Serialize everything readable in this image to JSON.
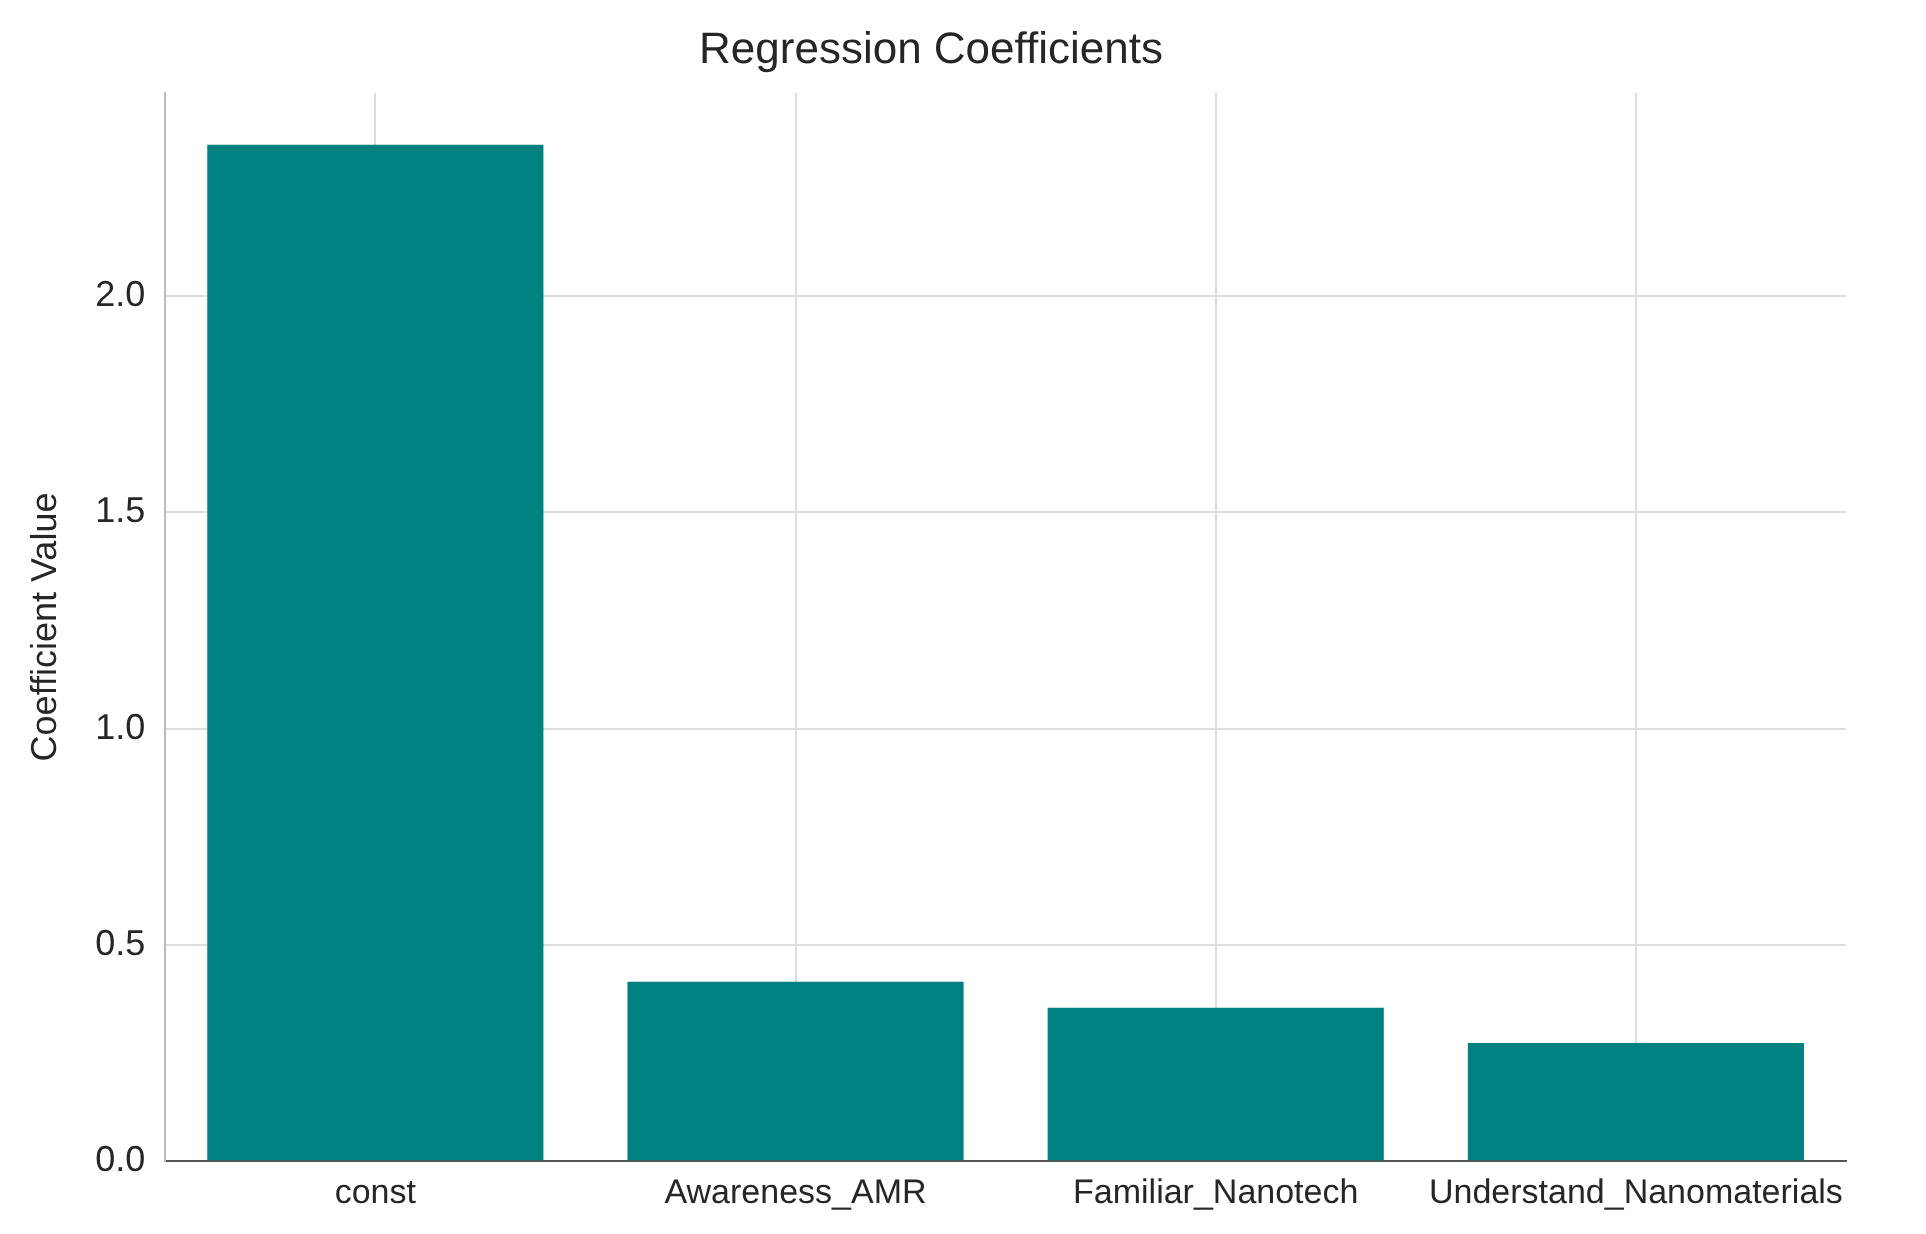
{
  "chart_data": {
    "type": "bar",
    "title": "Regression Coefficients",
    "ylabel": "Coefficient Value",
    "categories": [
      "const",
      "Awareness_AMR",
      "Familiar_Nanotech",
      "Understand_Nanomaterials"
    ],
    "values": [
      2.35,
      0.415,
      0.355,
      0.273
    ],
    "color": "#008080",
    "ylim": [
      0,
      2.47
    ],
    "yticks": [
      {
        "value": 0,
        "label": "0.0"
      },
      {
        "value": 0.5,
        "label": "0.5"
      },
      {
        "value": 1,
        "label": "1.0"
      },
      {
        "value": 1.5,
        "label": "1.5"
      },
      {
        "value": 2,
        "label": "2.0"
      }
    ],
    "grid": true
  }
}
